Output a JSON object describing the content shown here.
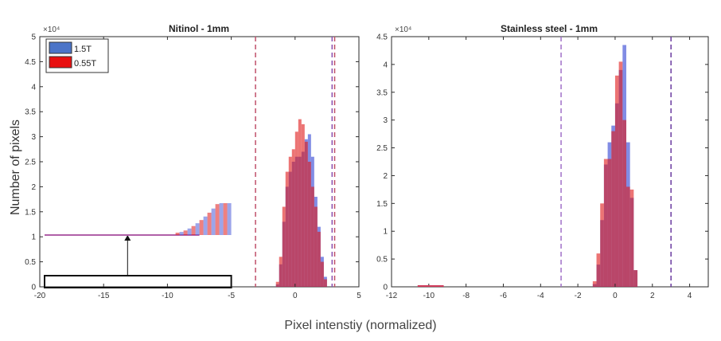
{
  "figure": {
    "ylabel": "Number of pixels",
    "xlabel": "Pixel intenstiy (normalized)"
  },
  "chart_data": [
    {
      "type": "histogram",
      "title": "Nitinol - 1mm",
      "exponent_label": "×10⁴",
      "xlim": [
        -20,
        5
      ],
      "ylim": [
        0,
        5
      ],
      "xticks": [
        -20,
        -15,
        -10,
        -5,
        0,
        5
      ],
      "yticks": [
        0,
        0.5,
        1,
        1.5,
        2,
        2.5,
        3,
        3.5,
        4,
        4.5,
        5
      ],
      "legend": {
        "placement": "top-left",
        "entries": [
          "1.5T",
          "0.55T"
        ]
      },
      "series": [
        {
          "name": "1.5T",
          "color": "#4b5bd8",
          "x": [
            -1.5,
            -1.25,
            -1.0,
            -0.75,
            -0.5,
            -0.25,
            0.0,
            0.25,
            0.5,
            0.75,
            1.0,
            1.25,
            1.5,
            1.75,
            2.0,
            2.25
          ],
          "values": [
            0.05,
            0.45,
            1.3,
            2.0,
            2.3,
            2.5,
            2.6,
            2.6,
            2.7,
            2.95,
            3.05,
            2.6,
            1.8,
            1.2,
            0.6,
            0.2
          ]
        },
        {
          "name": "0.55T",
          "color": "#e01818",
          "x": [
            -1.5,
            -1.25,
            -1.0,
            -0.75,
            -0.5,
            -0.25,
            0.0,
            0.25,
            0.5,
            0.75,
            1.0,
            1.25,
            1.5,
            1.75,
            2.0,
            2.25
          ],
          "values": [
            0.1,
            0.6,
            1.6,
            2.3,
            2.6,
            2.75,
            3.1,
            3.35,
            3.25,
            2.9,
            2.5,
            2.0,
            1.6,
            1.1,
            0.5,
            0.15
          ]
        }
      ],
      "vlines": [
        {
          "x": -3.1,
          "color": "#c0506a",
          "style": "dashed"
        },
        {
          "x": 2.9,
          "color": "#8a4fb0",
          "style": "dashed"
        },
        {
          "x": 3.1,
          "color": "#c0506a",
          "style": "dashed"
        }
      ],
      "inset": {
        "note": "zoomed view of the low-count region between -20 and -5",
        "x_range": [
          -20,
          -5
        ]
      }
    },
    {
      "type": "histogram",
      "title": "Stainless steel - 1mm",
      "exponent_label": "×10⁴",
      "xlim": [
        -12,
        5
      ],
      "ylim": [
        0,
        4.5
      ],
      "xticks": [
        -12,
        -10,
        -8,
        -6,
        -4,
        -2,
        0,
        2,
        4
      ],
      "yticks": [
        0,
        0.5,
        1,
        1.5,
        2,
        2.5,
        3,
        3.5,
        4,
        4.5
      ],
      "series": [
        {
          "name": "1.5T",
          "color": "#4b5bd8",
          "x": [
            -1.2,
            -1.0,
            -0.8,
            -0.6,
            -0.4,
            -0.2,
            0.0,
            0.2,
            0.4,
            0.6,
            0.8,
            1.0
          ],
          "values": [
            0.05,
            0.4,
            1.2,
            2.2,
            2.6,
            2.9,
            3.3,
            3.9,
            4.35,
            2.6,
            1.6,
            0.3
          ]
        },
        {
          "name": "0.55T",
          "color": "#e01818",
          "x": [
            -1.2,
            -1.0,
            -0.8,
            -0.6,
            -0.4,
            -0.2,
            0.0,
            0.2,
            0.4,
            0.6,
            0.8,
            1.0
          ],
          "values": [
            0.1,
            0.6,
            1.5,
            2.3,
            2.3,
            2.8,
            3.8,
            4.05,
            3.0,
            1.8,
            1.75,
            0.3
          ]
        }
      ],
      "vlines": [
        {
          "x": -2.9,
          "color": "#a070c8",
          "style": "dashed"
        },
        {
          "x": 3.0,
          "color": "#6a3aa0",
          "style": "dashed"
        }
      ]
    }
  ]
}
